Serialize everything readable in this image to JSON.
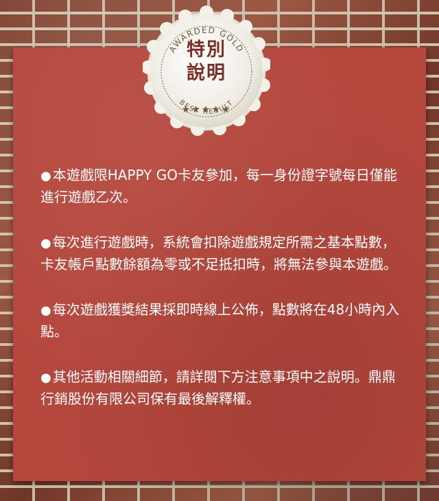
{
  "badge": {
    "top_text": "AWARDED GOLD",
    "title_line1": "特別",
    "title_line2": "說明",
    "stars": "★★★★★",
    "bottom_text": "BEST RESULT"
  },
  "notes": [
    {
      "bullet": "●",
      "text": "本遊戲限HAPPY GO卡友參加，每一身份證字號每日僅能進行遊戲乙次。"
    },
    {
      "bullet": "●",
      "text": "每次進行遊戲時，系統會扣除遊戲規定所需之基本點數，卡友帳戶點數餘額為零或不足抵扣時，將無法參與本遊戲。"
    },
    {
      "bullet": "●",
      "text": "每次遊戲獲獎結果採即時線上公佈，點數將在48小時內入點。"
    },
    {
      "bullet": "●",
      "text": "其他活動相關細節，請詳閱下方注意事項中之說明。鼎鼎行銷股份有限公司保有最後解釋權。"
    }
  ]
}
